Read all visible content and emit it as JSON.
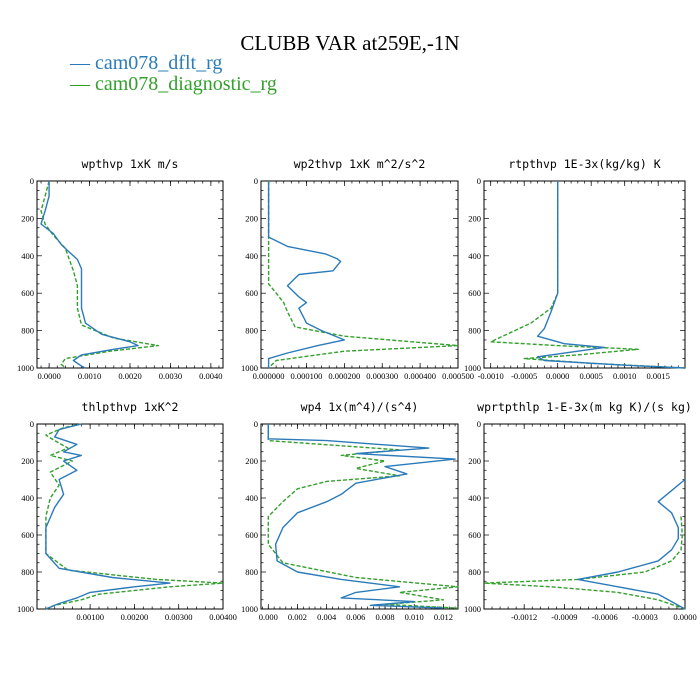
{
  "figure": {
    "title": "CLUBB VAR at259E,-1N",
    "legend": [
      {
        "label": "cam078_dflt_rg",
        "color": "#2b7bba",
        "dash": "solid"
      },
      {
        "label": "cam078_diagnostic_rg",
        "color": "#33a02c",
        "dash": "dashed"
      }
    ]
  },
  "chart_data": [
    {
      "type": "line",
      "title": "wpthvp   1xK m/s",
      "xlim": [
        -0.0003,
        0.0043
      ],
      "ylim": [
        0,
        1000
      ],
      "y_reversed": true,
      "x_ticks": [
        0.0,
        0.001,
        0.002,
        0.003,
        0.004
      ],
      "x_tick_labels": [
        "0.0000",
        "0.0010",
        "0.0020",
        "0.0030",
        "0.0040"
      ],
      "y_ticks": [
        0,
        200,
        400,
        600,
        800,
        1000
      ],
      "y_tick_labels": [
        "0",
        "200",
        "400",
        "600",
        "800",
        "1000"
      ],
      "series": [
        {
          "name": "cam078_dflt_rg",
          "points": [
            [
              0.0,
              0
            ],
            [
              0.0,
              80
            ],
            [
              -0.0001,
              160
            ],
            [
              -0.0002,
              230
            ],
            [
              0.0001,
              280
            ],
            [
              0.0003,
              340
            ],
            [
              0.0005,
              380
            ],
            [
              0.0007,
              420
            ],
            [
              0.0008,
              470
            ],
            [
              0.0008,
              560
            ],
            [
              0.0008,
              680
            ],
            [
              0.0009,
              760
            ],
            [
              0.0013,
              820
            ],
            [
              0.002,
              860
            ],
            [
              0.0022,
              880
            ],
            [
              0.0016,
              900
            ],
            [
              0.0008,
              930
            ],
            [
              0.0006,
              960
            ],
            [
              0.0008,
              990
            ],
            [
              0.0009,
              1000
            ]
          ]
        },
        {
          "name": "cam078_diagnostic_rg",
          "points": [
            [
              0.0,
              0
            ],
            [
              -0.0001,
              80
            ],
            [
              -0.0002,
              160
            ],
            [
              -0.0001,
              230
            ],
            [
              0.0001,
              290
            ],
            [
              0.0004,
              360
            ],
            [
              0.0005,
              420
            ],
            [
              0.0006,
              480
            ],
            [
              0.0007,
              560
            ],
            [
              0.0007,
              680
            ],
            [
              0.0008,
              770
            ],
            [
              0.0016,
              840
            ],
            [
              0.0027,
              880
            ],
            [
              0.0015,
              910
            ],
            [
              0.0004,
              950
            ],
            [
              0.0003,
              980
            ],
            [
              0.0004,
              1000
            ]
          ]
        }
      ]
    },
    {
      "type": "line",
      "title": "wp2thvp   1xK m^2/s^2",
      "xlim": [
        -2e-05,
        0.0005
      ],
      "ylim": [
        0,
        1000
      ],
      "y_reversed": true,
      "x_ticks": [
        0.0,
        0.0001,
        0.0002,
        0.0003,
        0.0004,
        0.0005
      ],
      "x_tick_labels": [
        "0.000000",
        "0.000100",
        "0.000200",
        "0.000300",
        "0.000400",
        "0.000500"
      ],
      "y_ticks": [
        0,
        200,
        400,
        600,
        800,
        1000
      ],
      "y_tick_labels": [
        "0",
        "200",
        "400",
        "600",
        "800",
        "1000"
      ],
      "series": [
        {
          "name": "cam078_dflt_rg",
          "points": [
            [
              0.0,
              0
            ],
            [
              0.0,
              300
            ],
            [
              5e-05,
              350
            ],
            [
              0.00015,
              390
            ],
            [
              0.00018,
              415
            ],
            [
              0.00019,
              430
            ],
            [
              0.00017,
              480
            ],
            [
              8e-05,
              500
            ],
            [
              5e-05,
              560
            ],
            [
              7e-05,
              600
            ],
            [
              8e-05,
              620
            ],
            [
              0.0001,
              650
            ],
            [
              8e-05,
              680
            ],
            [
              9e-05,
              720
            ],
            [
              0.0001,
              760
            ],
            [
              0.00014,
              800
            ],
            [
              0.0002,
              850
            ],
            [
              0.00013,
              880
            ],
            [
              5e-05,
              920
            ],
            [
              0.0,
              950
            ],
            [
              0.0,
              1000
            ]
          ]
        },
        {
          "name": "cam078_diagnostic_rg",
          "points": [
            [
              0.0,
              0
            ],
            [
              0.0,
              550
            ],
            [
              2e-05,
              600
            ],
            [
              4e-05,
              650
            ],
            [
              5e-05,
              700
            ],
            [
              7e-05,
              780
            ],
            [
              0.0002,
              830
            ],
            [
              0.0005,
              880
            ],
            [
              0.0002,
              910
            ],
            [
              2e-05,
              960
            ],
            [
              0.0,
              1000
            ]
          ]
        }
      ]
    },
    {
      "type": "line",
      "title": "rtpthvp   1E-3x(kg/kg) K",
      "xlim": [
        -0.0011,
        0.0019
      ],
      "ylim": [
        0,
        1000
      ],
      "y_reversed": true,
      "x_ticks": [
        -0.001,
        -0.0005,
        0.0,
        0.0005,
        0.001,
        0.0015
      ],
      "x_tick_labels": [
        "-0.0010",
        "-0.0005",
        "0.0000",
        "0.0005",
        "0.0010",
        "0.0015"
      ],
      "y_ticks": [
        0,
        200,
        400,
        600,
        800,
        1000
      ],
      "y_tick_labels": [
        "0",
        "200",
        "400",
        "600",
        "800",
        "1000"
      ],
      "series": [
        {
          "name": "cam078_dflt_rg",
          "points": [
            [
              0.0,
              0
            ],
            [
              0.0,
              500
            ],
            [
              0.0,
              600
            ],
            [
              -0.0001,
              700
            ],
            [
              -0.0002,
              790
            ],
            [
              -0.0003,
              830
            ],
            [
              0.0001,
              870
            ],
            [
              0.0007,
              890
            ],
            [
              0.0003,
              910
            ],
            [
              -0.0003,
              940
            ],
            [
              -0.0002,
              960
            ],
            [
              0.001,
              985
            ],
            [
              0.0019,
              1000
            ]
          ]
        },
        {
          "name": "cam078_diagnostic_rg",
          "points": [
            [
              0.0,
              0
            ],
            [
              0.0,
              500
            ],
            [
              0.0,
              600
            ],
            [
              -0.0001,
              680
            ],
            [
              -0.0004,
              760
            ],
            [
              -0.001,
              860
            ],
            [
              0.0,
              880
            ],
            [
              0.0012,
              900
            ],
            [
              0.0003,
              930
            ],
            [
              -0.0005,
              950
            ],
            [
              0.0005,
              975
            ],
            [
              0.0019,
              1000
            ]
          ]
        }
      ]
    },
    {
      "type": "line",
      "title": "thlpthvp   1xK^2",
      "xlim": [
        -0.0002,
        0.004
      ],
      "ylim": [
        0,
        1000
      ],
      "y_reversed": true,
      "x_ticks": [
        0.001,
        0.002,
        0.003,
        0.004
      ],
      "x_tick_labels": [
        "0.00100",
        "0.00200",
        "0.00300",
        "0.00400"
      ],
      "y_ticks": [
        0,
        200,
        400,
        600,
        800,
        1000
      ],
      "y_tick_labels": [
        "0",
        "200",
        "400",
        "600",
        "800",
        "1000"
      ],
      "series": [
        {
          "name": "cam078_dflt_rg",
          "points": [
            [
              0.0008,
              0
            ],
            [
              0.0003,
              30
            ],
            [
              0.0002,
              70
            ],
            [
              0.0007,
              110
            ],
            [
              0.0004,
              150
            ],
            [
              0.0008,
              170
            ],
            [
              0.0004,
              200
            ],
            [
              0.0007,
              250
            ],
            [
              0.0003,
              300
            ],
            [
              0.0004,
              380
            ],
            [
              0.0002,
              450
            ],
            [
              0.0,
              560
            ],
            [
              0.0,
              700
            ],
            [
              0.0003,
              780
            ],
            [
              0.0015,
              830
            ],
            [
              0.0028,
              860
            ],
            [
              0.002,
              880
            ],
            [
              0.001,
              910
            ],
            [
              0.0007,
              940
            ],
            [
              0.0003,
              970
            ],
            [
              0.0,
              1000
            ]
          ]
        },
        {
          "name": "cam078_diagnostic_rg",
          "points": [
            [
              0.0008,
              0
            ],
            [
              0.0004,
              20
            ],
            [
              0.0,
              60
            ],
            [
              0.0002,
              90
            ],
            [
              0.0005,
              130
            ],
            [
              0.0001,
              170
            ],
            [
              0.0006,
              200
            ],
            [
              0.0001,
              260
            ],
            [
              0.0003,
              330
            ],
            [
              0.0001,
              400
            ],
            [
              0.0,
              500
            ],
            [
              0.0,
              700
            ],
            [
              0.0005,
              790
            ],
            [
              0.0025,
              840
            ],
            [
              0.004,
              860
            ],
            [
              0.0028,
              880
            ],
            [
              0.0012,
              920
            ],
            [
              0.0008,
              950
            ],
            [
              0.0002,
              980
            ],
            [
              0.0,
              1000
            ]
          ]
        }
      ]
    },
    {
      "type": "line",
      "title": "wp4   1x(m^4)/(s^4)",
      "xlim": [
        -0.0005,
        0.013
      ],
      "ylim": [
        0,
        1000
      ],
      "y_reversed": true,
      "x_ticks": [
        0.0,
        0.002,
        0.004,
        0.006,
        0.008,
        0.01,
        0.012
      ],
      "x_tick_labels": [
        "0.000",
        "0.002",
        "0.004",
        "0.006",
        "0.008",
        "0.010",
        "0.012"
      ],
      "y_ticks": [
        0,
        200,
        400,
        600,
        800,
        1000
      ],
      "y_tick_labels": [
        "0",
        "200",
        "400",
        "600",
        "800",
        "1000"
      ],
      "series": [
        {
          "name": "cam078_dflt_rg",
          "points": [
            [
              0.0,
              0
            ],
            [
              0.0,
              80
            ],
            [
              0.004,
              90
            ],
            [
              0.011,
              130
            ],
            [
              0.006,
              160
            ],
            [
              0.0128,
              190
            ],
            [
              0.008,
              230
            ],
            [
              0.0095,
              270
            ],
            [
              0.006,
              320
            ],
            [
              0.005,
              380
            ],
            [
              0.004,
              420
            ],
            [
              0.002,
              480
            ],
            [
              0.001,
              560
            ],
            [
              0.0005,
              650
            ],
            [
              0.0006,
              740
            ],
            [
              0.002,
              800
            ],
            [
              0.005,
              840
            ],
            [
              0.009,
              880
            ],
            [
              0.006,
              910
            ],
            [
              0.005,
              940
            ],
            [
              0.01,
              960
            ],
            [
              0.007,
              980
            ],
            [
              0.012,
              995
            ]
          ]
        },
        {
          "name": "cam078_diagnostic_rg",
          "points": [
            [
              0.0,
              0
            ],
            [
              0.0,
              90
            ],
            [
              0.009,
              140
            ],
            [
              0.005,
              170
            ],
            [
              0.008,
              200
            ],
            [
              0.006,
              240
            ],
            [
              0.009,
              280
            ],
            [
              0.004,
              310
            ],
            [
              0.002,
              350
            ],
            [
              0.001,
              420
            ],
            [
              0.0,
              500
            ],
            [
              0.0,
              650
            ],
            [
              0.001,
              750
            ],
            [
              0.006,
              830
            ],
            [
              0.013,
              880
            ],
            [
              0.009,
              910
            ],
            [
              0.012,
              950
            ],
            [
              0.008,
              975
            ],
            [
              0.013,
              995
            ]
          ]
        }
      ]
    },
    {
      "type": "line",
      "title": "wprtpthlp   1-E-3x(m kg K)/(s kg)",
      "xlim": [
        -0.0015,
        0.0
      ],
      "ylim": [
        0,
        1000
      ],
      "y_reversed": true,
      "x_ticks": [
        -0.0012,
        -0.0009,
        -0.0006,
        -0.0003,
        0.0
      ],
      "x_tick_labels": [
        "-0.0012",
        "-0.0009",
        "-0.0006",
        "-0.0003",
        "0.0000"
      ],
      "y_ticks": [
        0,
        200,
        400,
        600,
        800,
        1000
      ],
      "y_tick_labels": [
        "0",
        "200",
        "400",
        "600",
        "800",
        "1000"
      ],
      "series": [
        {
          "name": "cam078_dflt_rg",
          "points": [
            [
              0.0,
              300
            ],
            [
              -0.0001,
              360
            ],
            [
              -0.0002,
              420
            ],
            [
              -0.0001,
              480
            ],
            [
              -5e-05,
              560
            ],
            [
              -5e-05,
              620
            ],
            [
              -0.0001,
              680
            ],
            [
              -0.0002,
              740
            ],
            [
              -0.0005,
              800
            ],
            [
              -0.0008,
              840
            ],
            [
              -0.0005,
              880
            ],
            [
              -0.0002,
              920
            ],
            [
              0.0,
              1000
            ]
          ]
        },
        {
          "name": "cam078_diagnostic_rg",
          "points": [
            [
              -3e-05,
              500
            ],
            [
              -2e-05,
              600
            ],
            [
              -3e-05,
              680
            ],
            [
              -0.0001,
              740
            ],
            [
              -0.0003,
              800
            ],
            [
              -0.0008,
              840
            ],
            [
              -0.0015,
              860
            ],
            [
              -0.001,
              880
            ],
            [
              -0.0005,
              910
            ],
            [
              -0.0002,
              950
            ],
            [
              0.0,
              1000
            ]
          ]
        }
      ]
    }
  ]
}
